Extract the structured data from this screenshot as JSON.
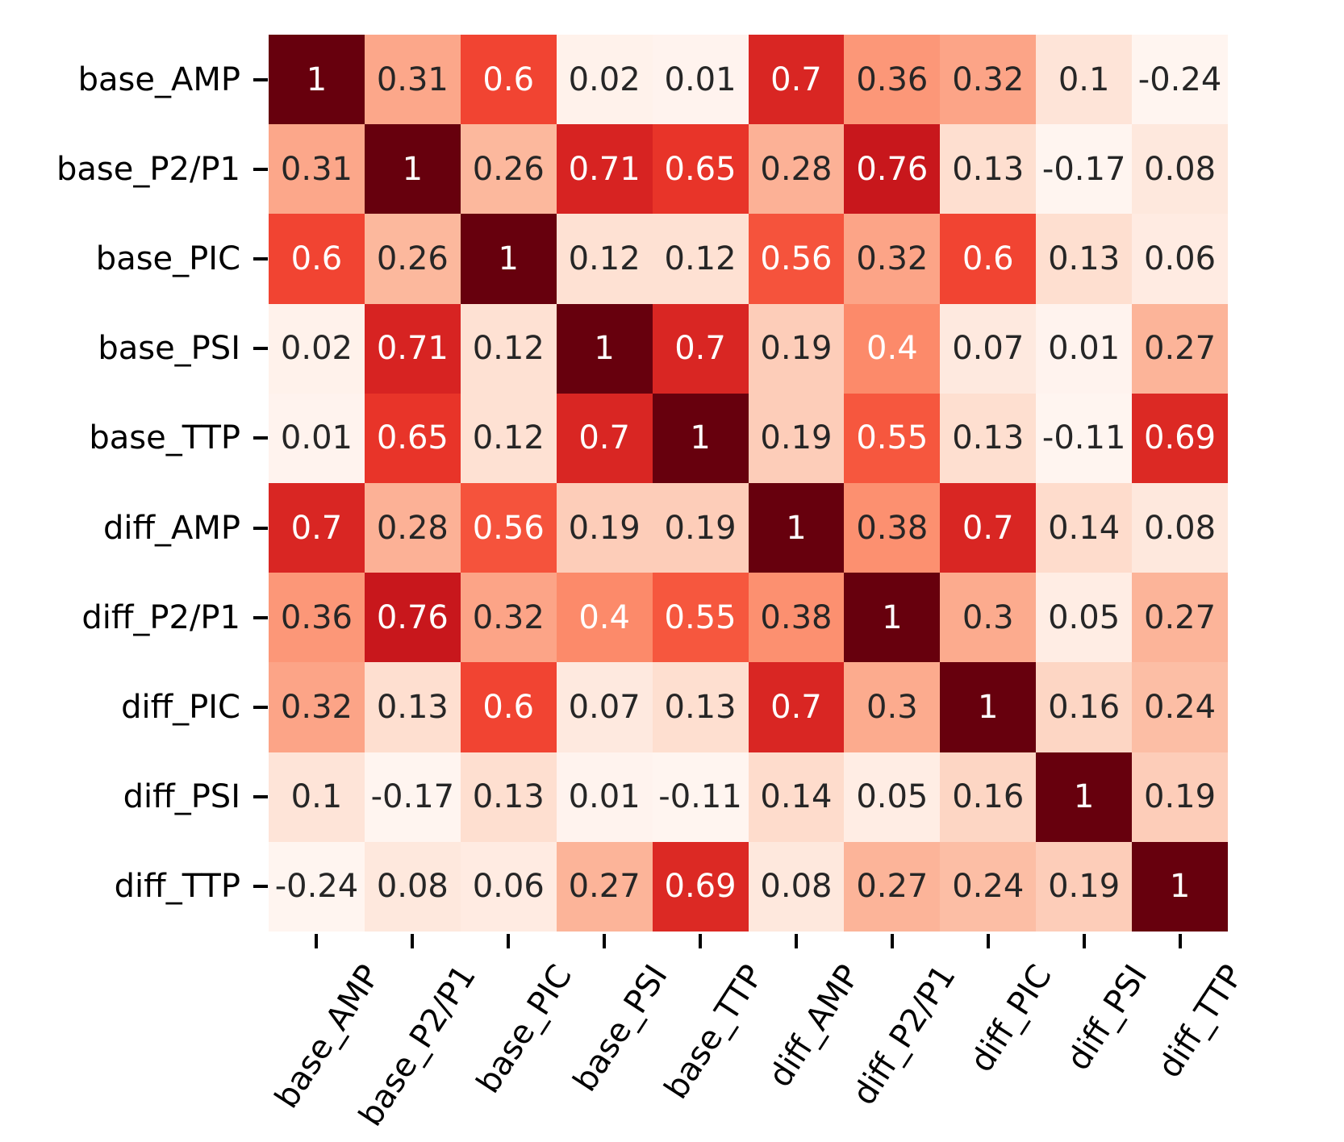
{
  "chart_data": {
    "type": "heatmap",
    "title": "",
    "labels": [
      "base_AMP",
      "base_P2/P1",
      "base_PIC",
      "base_PSI",
      "base_TTP",
      "diff_AMP",
      "diff_P2/P1",
      "diff_PIC",
      "diff_PSI",
      "diff_TTP"
    ],
    "matrix": [
      [
        1,
        0.31,
        0.6,
        0.02,
        0.01,
        0.7,
        0.36,
        0.32,
        0.1,
        -0.24
      ],
      [
        0.31,
        1,
        0.26,
        0.71,
        0.65,
        0.28,
        0.76,
        0.13,
        -0.17,
        0.08
      ],
      [
        0.6,
        0.26,
        1,
        0.12,
        0.12,
        0.56,
        0.32,
        0.6,
        0.13,
        0.06
      ],
      [
        0.02,
        0.71,
        0.12,
        1,
        0.7,
        0.19,
        0.4,
        0.07,
        0.01,
        0.27
      ],
      [
        0.01,
        0.65,
        0.12,
        0.7,
        1,
        0.19,
        0.55,
        0.13,
        -0.11,
        0.69
      ],
      [
        0.7,
        0.28,
        0.56,
        0.19,
        0.19,
        1,
        0.38,
        0.7,
        0.14,
        0.08
      ],
      [
        0.36,
        0.76,
        0.32,
        0.4,
        0.55,
        0.38,
        1,
        0.3,
        0.05,
        0.27
      ],
      [
        0.32,
        0.13,
        0.6,
        0.07,
        0.13,
        0.7,
        0.3,
        1,
        0.16,
        0.24
      ],
      [
        0.1,
        -0.17,
        0.13,
        0.01,
        -0.11,
        0.14,
        0.05,
        0.16,
        1,
        0.19
      ],
      [
        -0.24,
        0.08,
        0.06,
        0.27,
        0.69,
        0.08,
        0.27,
        0.24,
        0.19,
        1
      ]
    ],
    "colormap": "Reds",
    "colormap_anchors": [
      "#fff5f0",
      "#fee0d2",
      "#fcbba1",
      "#fc9272",
      "#fb6a4a",
      "#ef3b2c",
      "#cb181d",
      "#a50f15",
      "#67000d"
    ],
    "vmin": 0,
    "vmax": 1,
    "annotation_dark_color": "#262626",
    "annotation_light_color": "#ffffff",
    "luminance_threshold": 0.408,
    "tick_color": "#000000",
    "axis_label_color": "#000000",
    "background_color": "#ffffff",
    "legend": "none",
    "grid": "off"
  }
}
